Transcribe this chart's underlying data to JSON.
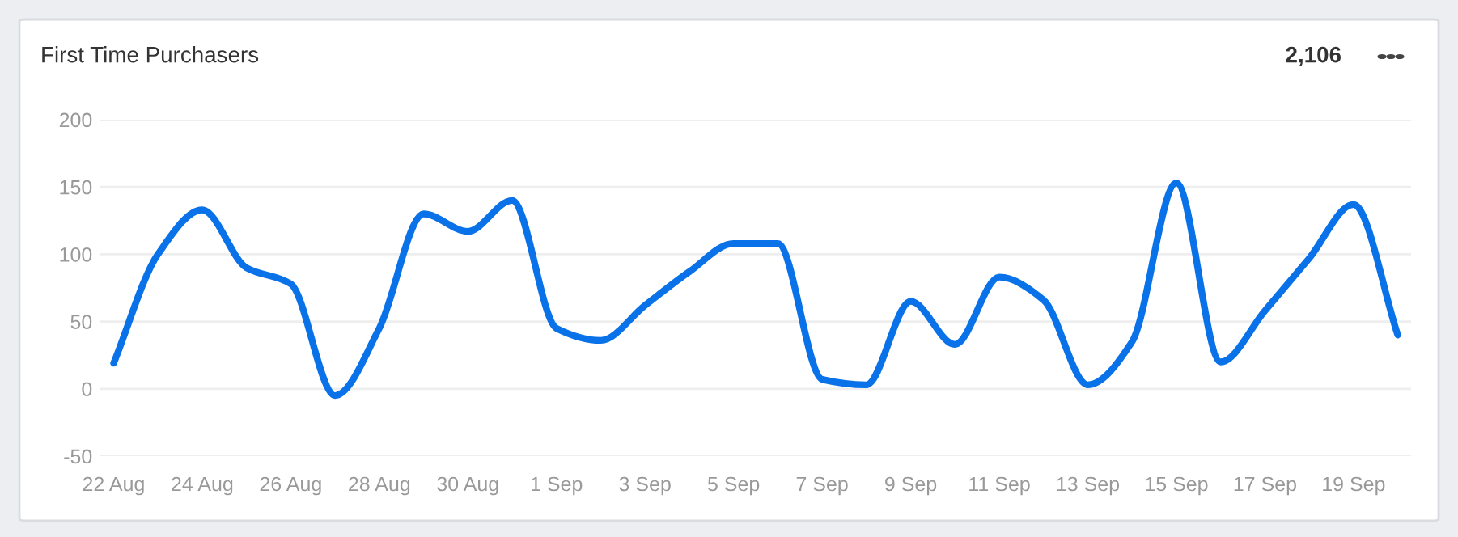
{
  "chart_data": {
    "type": "line",
    "title": "First Time Purchasers",
    "annotations": [
      "2,106"
    ],
    "categories": [
      "22 Aug",
      null,
      "24 Aug",
      null,
      "26 Aug",
      null,
      "28 Aug",
      null,
      "30 Aug",
      null,
      "1 Sep",
      null,
      "3 Sep",
      null,
      "5 Sep",
      null,
      "7 Sep",
      null,
      "9 Sep",
      null,
      "11 Sep",
      null,
      "13 Sep",
      null,
      "15 Sep",
      null,
      "17 Sep",
      null,
      "19 Sep",
      null
    ],
    "series": [
      {
        "color": "#0a72e8",
        "values": [
          19,
          100,
          133,
          90,
          78,
          -5,
          45,
          130,
          117,
          140,
          45,
          36,
          62,
          87,
          108,
          108,
          7,
          3,
          65,
          33,
          83,
          66,
          3,
          35,
          153,
          20,
          58,
          97,
          137,
          40
        ]
      }
    ],
    "ylim": [
      -50,
      200
    ],
    "yticks": [
      -50,
      0,
      50,
      100,
      150,
      200
    ],
    "grid": "y",
    "legend": false,
    "marker": "none",
    "line_style": "solid"
  }
}
